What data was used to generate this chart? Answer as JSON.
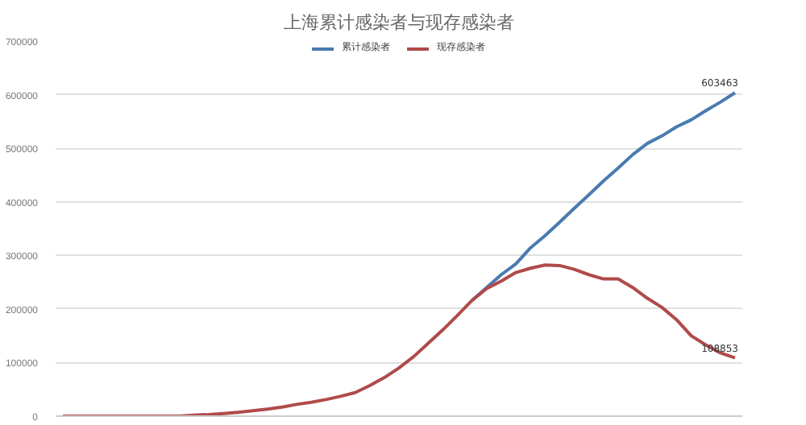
{
  "chart_data": {
    "type": "line",
    "title": "上海累计感染者与现存感染者",
    "categories": [
      null,
      null,
      null,
      null,
      null,
      null,
      null,
      null,
      null,
      null,
      null,
      null,
      null,
      null,
      null,
      null,
      null,
      null,
      null,
      null,
      null,
      null,
      null,
      null,
      null,
      null,
      null,
      null,
      null,
      null,
      null,
      null,
      null,
      null,
      null,
      null,
      null,
      null,
      null,
      null,
      null,
      null,
      null,
      null,
      null,
      null,
      null
    ],
    "series": [
      {
        "name": "累计感染者",
        "color": "#4a7ab0",
        "values": [
          null,
          null,
          null,
          null,
          null,
          null,
          null,
          null,
          null,
          null,
          null,
          null,
          null,
          null,
          null,
          null,
          null,
          null,
          null,
          null,
          null,
          null,
          null,
          null,
          null,
          null,
          null,
          null,
          216000,
          240000,
          264000,
          284000,
          314000,
          337000,
          362000,
          388000,
          413000,
          439000,
          463000,
          488000,
          509000,
          523000,
          540000,
          553000,
          570000,
          586000,
          603463
        ],
        "value_labels": [
          null,
          null,
          null,
          null,
          null,
          null,
          null,
          null,
          null,
          null,
          null,
          null,
          null,
          null,
          null,
          null,
          null,
          null,
          null,
          null,
          null,
          null,
          null,
          null,
          null,
          null,
          null,
          null,
          null,
          null,
          null,
          null,
          null,
          null,
          null,
          null,
          null,
          null,
          null,
          null,
          null,
          null,
          null,
          null,
          null,
          null,
          "603463"
        ]
      },
      {
        "name": "现存感染者",
        "color": "#b04a4a",
        "values": [
          0,
          0,
          0,
          0,
          0,
          0,
          0,
          0,
          0,
          2000,
          3000,
          5000,
          7000,
          10000,
          13000,
          17000,
          22000,
          26000,
          31000,
          37000,
          44000,
          57000,
          72000,
          90000,
          111000,
          136000,
          161000,
          188000,
          216000,
          238000,
          252000,
          268000,
          276000,
          282000,
          281000,
          274000,
          264000,
          256000,
          256000,
          240000,
          220000,
          203000,
          180000,
          150000,
          133000,
          118000,
          108853
        ],
        "value_labels": [
          null,
          null,
          null,
          null,
          null,
          null,
          null,
          null,
          null,
          null,
          null,
          null,
          null,
          null,
          null,
          null,
          null,
          null,
          null,
          null,
          null,
          null,
          null,
          null,
          null,
          null,
          null,
          null,
          null,
          null,
          null,
          null,
          null,
          null,
          null,
          null,
          null,
          null,
          null,
          null,
          null,
          null,
          null,
          null,
          null,
          null,
          "108853"
        ]
      }
    ],
    "ylim": [
      0,
      700000
    ],
    "yticks": [
      0,
      100000,
      200000,
      300000,
      400000,
      500000,
      600000,
      700000
    ],
    "grid": "y",
    "legend": "top",
    "marker": "none",
    "line_style": "solid"
  }
}
